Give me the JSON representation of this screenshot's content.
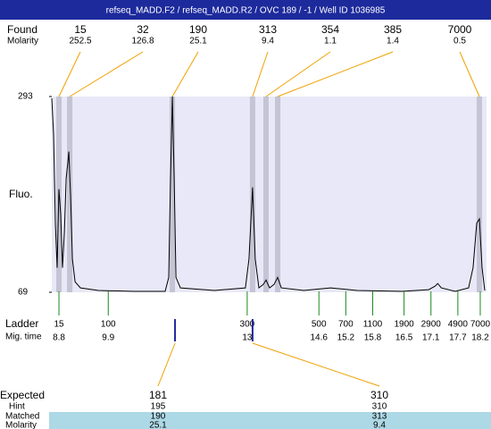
{
  "header": "refseq_MADD.F2 / refseq_MADD.R2 / OVC 189 / -1 / Well ID 1036985",
  "chart_data": {
    "type": "line",
    "ylabel": "Fluo.",
    "color": "#000000",
    "ylim": [
      69,
      293
    ],
    "yticks": [
      69,
      293
    ],
    "xlim": [
      8.64,
      18.34
    ],
    "x": [
      8.64,
      8.68,
      8.72,
      8.76,
      8.8,
      8.84,
      8.88,
      8.92,
      8.96,
      9.0,
      9.02,
      9.06,
      9.1,
      9.16,
      9.28,
      9.68,
      10.47,
      11.17,
      11.25,
      11.29,
      11.33,
      11.37,
      11.41,
      11.51,
      12.27,
      12.96,
      13.04,
      13.12,
      13.18,
      13.26,
      13.36,
      13.42,
      13.5,
      13.6,
      13.68,
      13.76,
      14.26,
      14.86,
      15.45,
      16.45,
      17.05,
      17.19,
      17.25,
      17.33,
      17.64,
      17.94,
      18.04,
      18.12,
      18.18,
      18.24,
      18.3
    ],
    "values": [
      291,
      250,
      148,
      97,
      187,
      158,
      97,
      137,
      199,
      219,
      230,
      178,
      107,
      81,
      74,
      71,
      70,
      70,
      86,
      199,
      293,
      199,
      86,
      74,
      71,
      74,
      107,
      189,
      107,
      74,
      78,
      83,
      74,
      78,
      86,
      74,
      71,
      74,
      71,
      70,
      72,
      76,
      79,
      74,
      70,
      74,
      97,
      148,
      153,
      97,
      71
    ],
    "found": {
      "label": "Found",
      "molarity_label": "Molarity",
      "peaks": [
        {
          "size": 15,
          "molarity": 252.5,
          "time": 8.8
        },
        {
          "size": 32,
          "molarity": 126.8,
          "time": 9.04
        },
        {
          "size": 190,
          "molarity": 25.1,
          "time": 11.33
        },
        {
          "size": 313,
          "molarity": 9.4,
          "time": 13.12
        },
        {
          "size": 354,
          "molarity": 1.1,
          "time": 13.42
        },
        {
          "size": 385,
          "molarity": 1.4,
          "time": 13.68
        },
        {
          "size": 7000,
          "molarity": 0.5,
          "time": 18.18
        }
      ]
    },
    "ladder": {
      "label": "Ladder",
      "time_label": "Mig. time",
      "sizes": [
        15,
        100,
        300,
        500,
        700,
        1100,
        1900,
        2900,
        4900,
        7000
      ],
      "times": [
        8.8,
        9.9,
        13,
        14.6,
        15.2,
        15.8,
        16.5,
        17.1,
        17.7,
        18.2
      ]
    },
    "expected": {
      "labels": [
        "Expected",
        "Hint",
        "Matched",
        "Molarity"
      ],
      "columns": [
        {
          "expected": 181,
          "hint": 195,
          "matched": 190,
          "molarity": 25.1,
          "time": 11.39
        },
        {
          "expected": 310,
          "hint": 310,
          "matched": 313,
          "molarity": 9.4,
          "time": 13.12
        }
      ]
    }
  }
}
